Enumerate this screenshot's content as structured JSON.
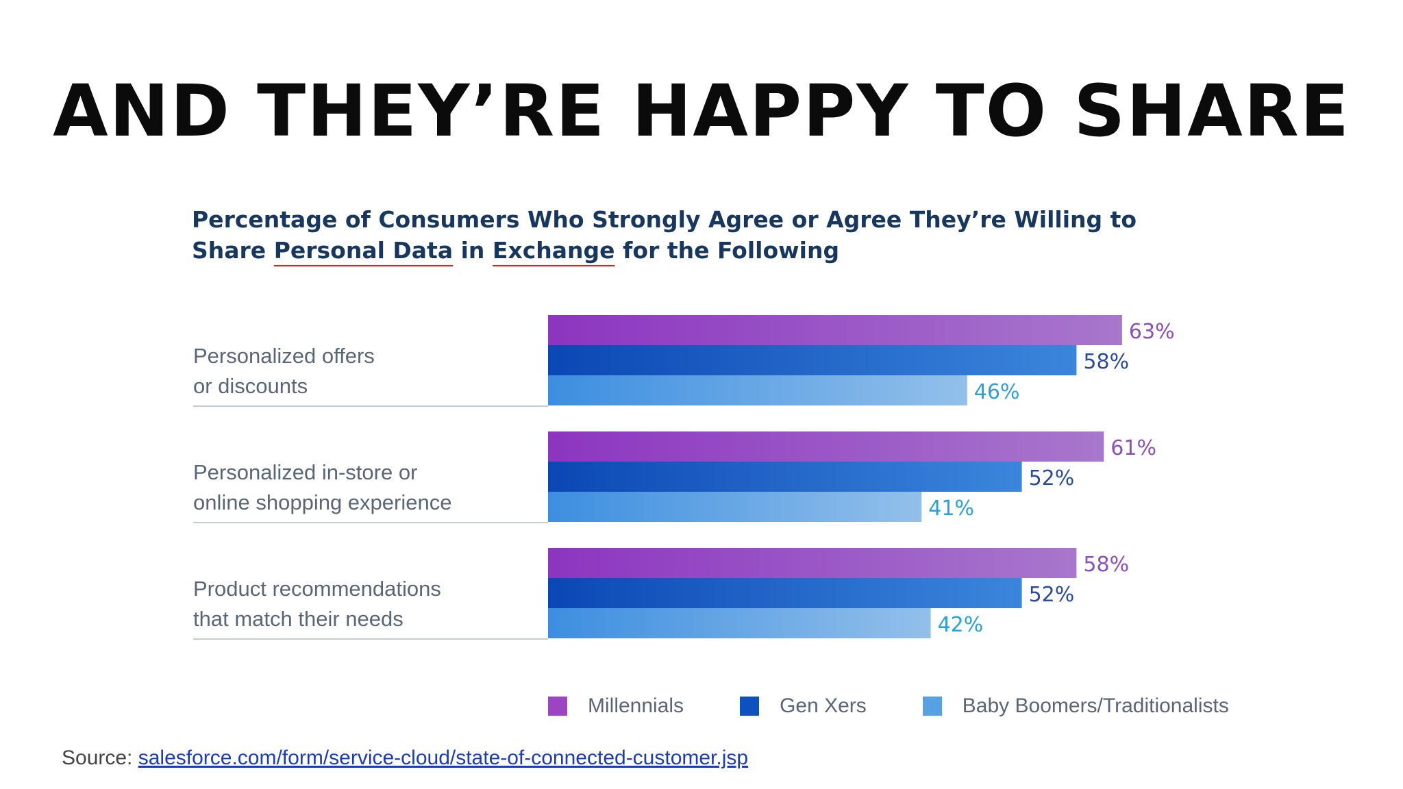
{
  "slide": {
    "title": "AND THEY’RE HAPPY TO SHARE",
    "source_prefix": "Source: ",
    "source_link": "salesforce.com/form/service-cloud/state-of-connected-customer.jsp"
  },
  "chart_data": {
    "type": "bar",
    "orientation": "horizontal",
    "title_parts": [
      "Percentage of Consumers Who Strongly Agree or Agree They’re Willing to Share ",
      "Personal Data",
      " in ",
      "Exchange",
      " for the Following"
    ],
    "categories": [
      [
        "Personalized offers",
        "or discounts"
      ],
      [
        "Personalized in-store or",
        "online shopping experience"
      ],
      [
        "Product recommendations",
        "that match their needs"
      ]
    ],
    "series": [
      {
        "name": "Millennials",
        "values": [
          63,
          61,
          58
        ],
        "color_start": "#8c35c0",
        "color_end": "#a877cc",
        "label_color": "#8a4fb8"
      },
      {
        "name": "Gen Xers",
        "values": [
          58,
          52,
          52
        ],
        "color_start": "#0b47b4",
        "color_end": "#3b86dc",
        "label_color": "#2a4a9a"
      },
      {
        "name": "Baby Boomers/Traditionalists",
        "values": [
          46,
          41,
          42
        ],
        "color_start": "#3c8ee0",
        "color_end": "#93c0ea",
        "label_color": "#2aa0d8"
      }
    ],
    "value_suffix": "%",
    "xlim": [
      0,
      100
    ],
    "grid": false,
    "legend_position": "bottom"
  }
}
